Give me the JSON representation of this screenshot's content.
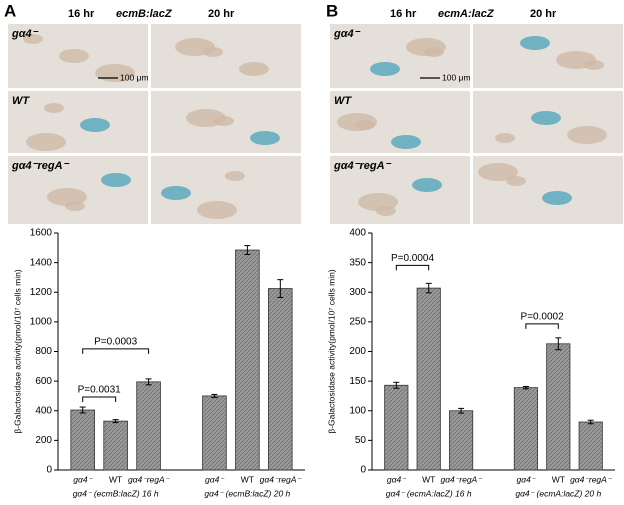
{
  "panels": [
    {
      "letter": "A",
      "reporter": "ecmB:lacZ",
      "times": [
        "16 hr",
        "20 hr"
      ],
      "rows": [
        "gα4⁻",
        "WT",
        "gα4⁻regA⁻"
      ],
      "scale_bar": "100 μm"
    },
    {
      "letter": "B",
      "reporter": "ecmA:lacZ",
      "times": [
        "16 hr",
        "20 hr"
      ],
      "rows": [
        "gα4⁻",
        "WT",
        "gα4⁻regA⁻"
      ],
      "scale_bar": "100 μm"
    }
  ],
  "chart_data": [
    {
      "type": "bar",
      "ylabel": "β-Galactosidase activity(pmol/10⁷ cells min)",
      "categories": [
        "gα4⁻",
        "WT",
        "gα4⁻regA⁻",
        "gα4⁻",
        "WT",
        "gα4⁻regA⁻"
      ],
      "groups": [
        "gα4⁻ (ecmB:lacZ) 16 h",
        "gα4⁻ (ecmB:lacZ) 20 h"
      ],
      "values": [
        405,
        330,
        595,
        500,
        1485,
        1225
      ],
      "errors": [
        20,
        10,
        20,
        10,
        30,
        60
      ],
      "color": "#8c8c8c",
      "ylim": [
        0,
        1600
      ],
      "yticks": [
        0,
        200,
        400,
        600,
        800,
        1000,
        1200,
        1400,
        1600
      ],
      "annotations": [
        "P=0.0031",
        "P=0.0003"
      ]
    },
    {
      "type": "bar",
      "ylabel": "β-Galactosidase activity(pmol/10⁷ cells min)",
      "categories": [
        "gα4⁻",
        "WT",
        "gα4⁻regA⁻",
        "gα4⁻",
        "WT",
        "gα4⁻regA⁻"
      ],
      "groups": [
        "gα4⁻ (ecmA:lacZ) 16 h",
        "gα4⁻ (ecmA:lacZ) 20 h"
      ],
      "values": [
        143,
        307,
        100,
        139,
        213,
        81
      ],
      "errors": [
        5,
        8,
        4,
        2,
        10,
        3
      ],
      "color": "#8c8c8c",
      "ylim": [
        0,
        400
      ],
      "yticks": [
        0,
        50,
        100,
        150,
        200,
        250,
        300,
        350,
        400
      ],
      "annotations": [
        "P=0.0004",
        "P=0.0002"
      ]
    }
  ]
}
